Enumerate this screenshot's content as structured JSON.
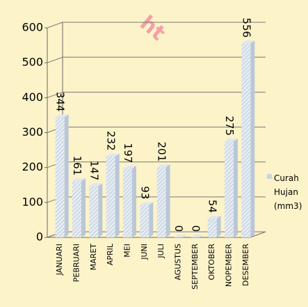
{
  "chart_data": {
    "type": "bar",
    "watermark": "ht",
    "categories": [
      "JANUARI",
      "PEBRUARI",
      "MARET",
      "APRIL",
      "MEI",
      "JUNI",
      "JULI",
      "AGUSTUS",
      "SEPTEMBER",
      "OKTOBER",
      "NOPEMBER",
      "DESEMBER"
    ],
    "series": [
      {
        "name": "Curah Hujan (mm3)",
        "color": "#c9d6e3",
        "values": [
          344,
          161,
          147,
          232,
          197,
          93,
          201,
          0,
          0,
          54,
          275,
          556
        ]
      }
    ],
    "ylim": [
      0,
      600
    ],
    "yticks": [
      0,
      100,
      200,
      300,
      400,
      500,
      600
    ],
    "grid": true,
    "legend": "right"
  }
}
